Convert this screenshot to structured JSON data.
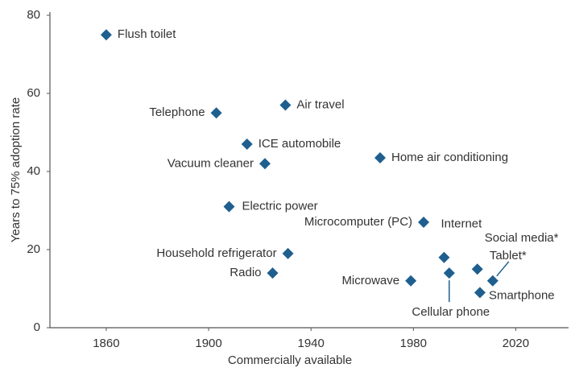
{
  "chart_data": {
    "type": "scatter",
    "x_label": "Commercially available",
    "y_label": "Years to 75% adoption rate",
    "color": "#1f5f8f",
    "xlim": [
      1838,
      2040
    ],
    "xticks": [
      1860,
      1900,
      1940,
      1980,
      2020
    ],
    "ylim": [
      0,
      80
    ],
    "yticks": [
      0,
      20,
      40,
      60,
      80
    ],
    "labels": [
      "Flush toilet",
      "Telephone",
      "Air travel",
      "ICE automobile",
      "Vacuum cleaner",
      "Home air conditioning",
      "Electric power",
      "Microcomputer (PC)",
      "Internet",
      "Household refrigerator",
      "Radio",
      "Microwave",
      "Cellular phone",
      "Social media*",
      "Tablet*",
      "Smartphone"
    ],
    "x": [
      1860,
      1903,
      1930,
      1915,
      1922,
      1967,
      1908,
      1984,
      1992,
      1931,
      1925,
      1979,
      1994,
      2005,
      2011,
      2006
    ],
    "values": [
      75,
      55,
      57,
      47,
      42,
      43.5,
      31,
      27,
      18,
      19,
      14,
      12,
      14,
      15,
      12,
      9
    ]
  }
}
